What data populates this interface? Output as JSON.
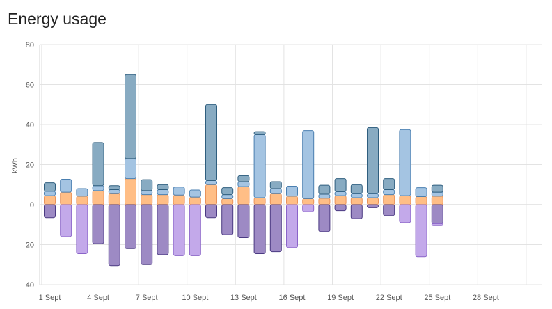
{
  "card": {
    "title": "Energy usage"
  },
  "chart_data": {
    "type": "bar",
    "stacked": true,
    "grid": true,
    "ylabel": "kWh",
    "ylim": [
      -40,
      80
    ],
    "yticks": [
      {
        "value": 80,
        "label": "80"
      },
      {
        "value": 60,
        "label": "60"
      },
      {
        "value": 40,
        "label": "40"
      },
      {
        "value": 20,
        "label": "20"
      },
      {
        "value": 0,
        "label": "0"
      },
      {
        "value": -20,
        "label": "20"
      },
      {
        "value": -40,
        "label": "40"
      }
    ],
    "x_tick_labels": [
      {
        "day": 1,
        "label": "1 Sept"
      },
      {
        "day": 4,
        "label": "4 Sept"
      },
      {
        "day": 7,
        "label": "7 Sept"
      },
      {
        "day": 10,
        "label": "10 Sept"
      },
      {
        "day": 13,
        "label": "13 Sept"
      },
      {
        "day": 16,
        "label": "16 Sept"
      },
      {
        "day": 19,
        "label": "19 Sept"
      },
      {
        "day": 22,
        "label": "22 Sept"
      },
      {
        "day": 25,
        "label": "25 Sept"
      },
      {
        "day": 28,
        "label": "28 Sept"
      }
    ],
    "x_range_days": [
      1,
      31
    ],
    "days": [
      1,
      2,
      3,
      4,
      5,
      6,
      7,
      8,
      9,
      10,
      11,
      12,
      13,
      14,
      15,
      16,
      17,
      18,
      19,
      20,
      21,
      22,
      23,
      24,
      25
    ],
    "series": [
      {
        "key": "s1",
        "color": "#ffbe86",
        "stroke": "#e8925a",
        "values": [
          4.5,
          6.2,
          4.2,
          7,
          5.5,
          13,
          5,
          5,
          4.8,
          3.8,
          10,
          3,
          9,
          3.5,
          5.5,
          4.2,
          3,
          3.2,
          4.5,
          3.5,
          3.5,
          5,
          4.5,
          4,
          4.2
        ]
      },
      {
        "key": "s2",
        "color": "#a4c4e2",
        "stroke": "#4a7fb0",
        "values": [
          2.2,
          6.5,
          3.8,
          2.5,
          2,
          10,
          2,
          2.5,
          4,
          3.5,
          2,
          2,
          2.5,
          31.5,
          2.5,
          5,
          34,
          2,
          2,
          2,
          2,
          2.5,
          33,
          4.5,
          2
        ]
      },
      {
        "key": "s3",
        "color": "#88abc2",
        "stroke": "#2f5e7e",
        "values": [
          4.2,
          0,
          0,
          21.5,
          2,
          42,
          5.5,
          2.5,
          0,
          0,
          38,
          3.5,
          3,
          1.5,
          3.5,
          0,
          0,
          4.5,
          6.5,
          4.5,
          33,
          5.5,
          0,
          0,
          3.5
        ]
      },
      {
        "key": "s4",
        "color": "#9d8ac4",
        "stroke": "#4b3a82",
        "values": [
          -6.5,
          0,
          0,
          -19.5,
          -30.5,
          -22,
          -30,
          -25,
          0,
          0,
          -6.5,
          -15,
          -16.5,
          -24.5,
          -23.5,
          0,
          0,
          -13.5,
          -3,
          -7,
          -1.5,
          -5.5,
          0,
          0,
          -9.5
        ]
      },
      {
        "key": "s5",
        "color": "#c3a9ea",
        "stroke": "#8a64c8",
        "values": [
          0,
          -16,
          -24.5,
          0,
          0,
          0,
          0,
          0,
          -25.5,
          -25.5,
          0,
          0,
          0,
          0,
          0,
          -21.5,
          -3.5,
          0,
          0,
          0,
          0,
          0,
          -9,
          -26,
          -1
        ]
      }
    ]
  }
}
